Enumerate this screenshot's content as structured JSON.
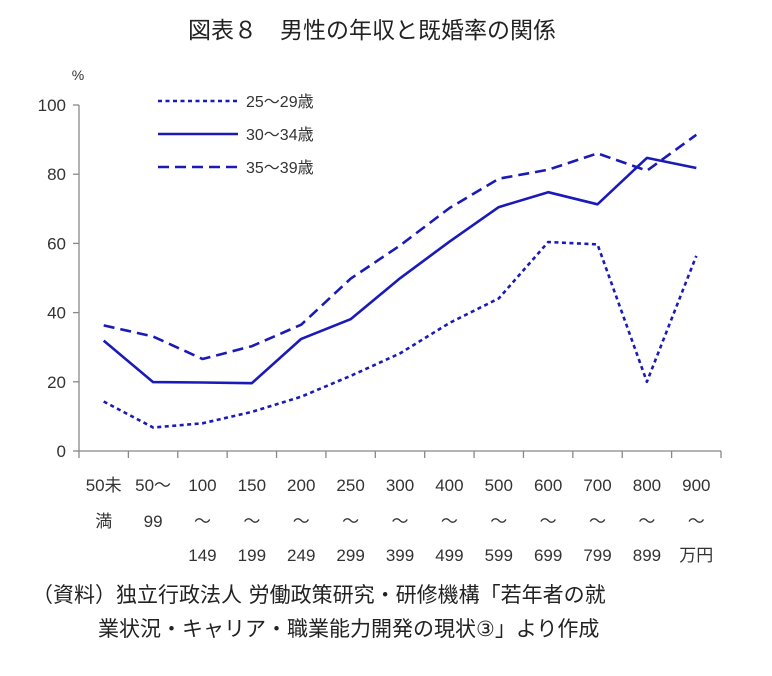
{
  "chart_data": {
    "type": "line",
    "title": "図表８　男性の年収と既婚率の関係",
    "y_unit": "%",
    "ylim": [
      0,
      100
    ],
    "yticks": [
      "0",
      "20",
      "40",
      "60",
      "80",
      "100"
    ],
    "categories": [
      [
        "50未",
        "満",
        ""
      ],
      [
        "50～",
        "99",
        ""
      ],
      [
        "100",
        "～",
        "149"
      ],
      [
        "150",
        "～",
        "199"
      ],
      [
        "200",
        "～",
        "249"
      ],
      [
        "250",
        "～",
        "299"
      ],
      [
        "300",
        "～",
        "399"
      ],
      [
        "400",
        "～",
        "499"
      ],
      [
        "500",
        "～",
        "599"
      ],
      [
        "600",
        "～",
        "699"
      ],
      [
        "700",
        "～",
        "799"
      ],
      [
        "800",
        "～",
        "899"
      ],
      [
        "900",
        "～",
        "万円"
      ]
    ],
    "series": [
      {
        "name": "25～29歳",
        "style": "dotted",
        "color": "#1a1ab8",
        "values": [
          14.3,
          6.8,
          8.0,
          11.3,
          15.7,
          21.7,
          28.2,
          37.0,
          44.1,
          60.4,
          59.7,
          20.0,
          56.4
        ]
      },
      {
        "name": "30～34歳",
        "style": "solid",
        "color": "#1a1ab8",
        "values": [
          31.9,
          19.9,
          19.8,
          19.6,
          32.4,
          38.1,
          49.9,
          60.5,
          70.5,
          74.8,
          71.3,
          84.7,
          81.8
        ]
      },
      {
        "name": "35～39歳",
        "style": "dashed",
        "color": "#1a1ab8",
        "values": [
          36.3,
          33.1,
          26.6,
          30.3,
          36.5,
          49.8,
          59.4,
          70.2,
          78.7,
          81.3,
          86.0,
          81.0,
          91.4
        ]
      }
    ],
    "legend_position": "top-left",
    "grid": false
  },
  "source": {
    "line1": "（資料）独立行政法人 労働政策研究・研修機構「若年者の就",
    "line2": "業状況・キャリア・職業能力開発の現状③」より作成"
  }
}
